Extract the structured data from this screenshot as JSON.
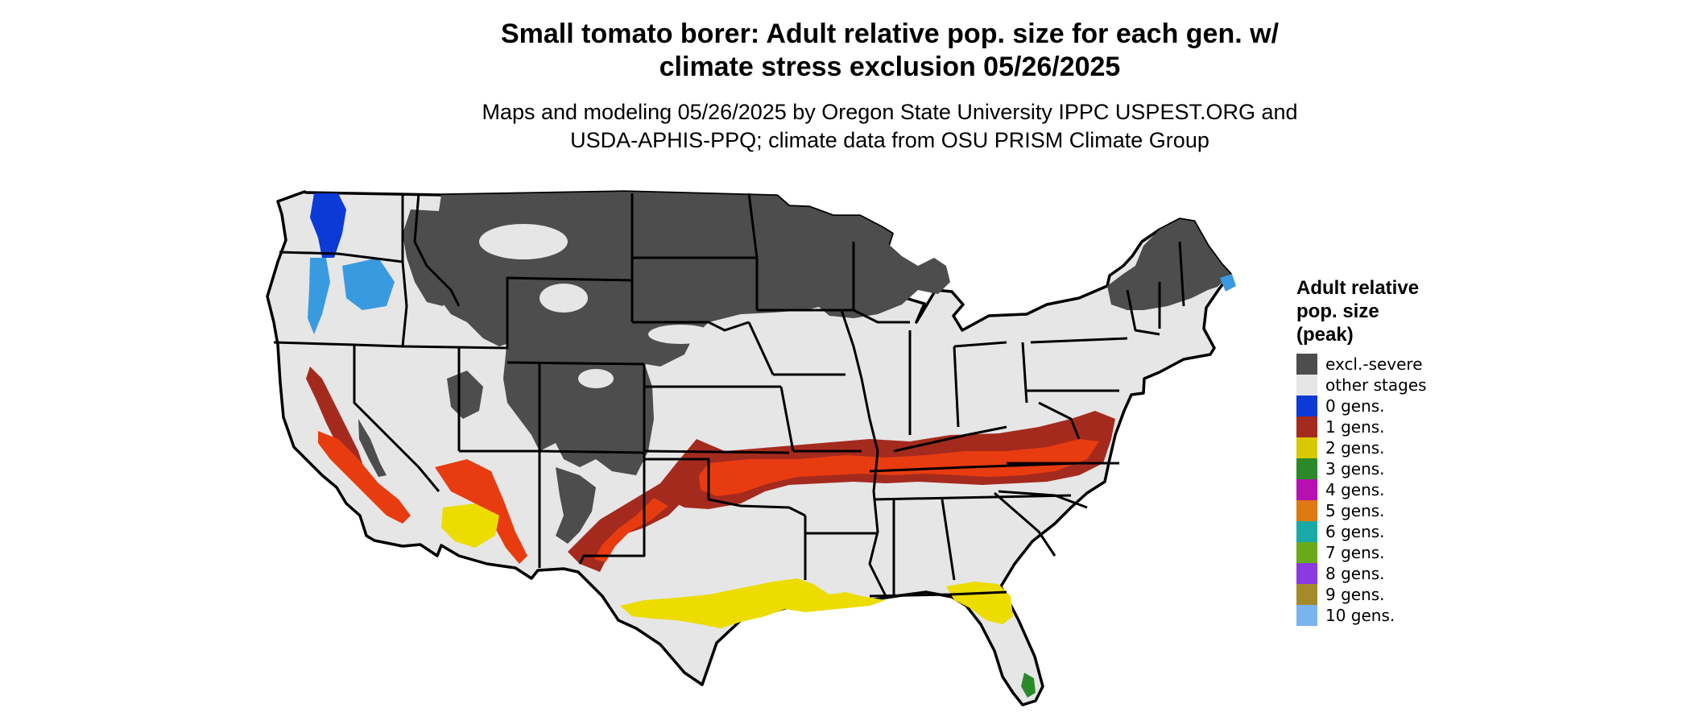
{
  "title": {
    "line1": "Small tomato borer: Adult relative pop. size for each gen. w/",
    "line2": "climate stress exclusion 05/26/2025"
  },
  "subtitle": {
    "line1": "Maps and modeling 05/26/2025 by Oregon State University IPPC USPEST.ORG and",
    "line2": "USDA-APHIS-PPQ; climate data from OSU PRISM Climate Group"
  },
  "legend": {
    "title_line1": "Adult relative",
    "title_line2": "pop. size",
    "title_line3": "(peak)",
    "items": [
      {
        "label": "excl.-severe",
        "color": "#4d4d4d"
      },
      {
        "label": "other stages",
        "color": "#e6e6e6"
      },
      {
        "label": "0 gens.",
        "color": "#0b3ad6"
      },
      {
        "label": "1 gens.",
        "color": "#a52a1e"
      },
      {
        "label": "2 gens.",
        "color": "#d8c800"
      },
      {
        "label": "3 gens.",
        "color": "#2a8a2a"
      },
      {
        "label": "4 gens.",
        "color": "#b80fb0"
      },
      {
        "label": "5 gens.",
        "color": "#dd7a14"
      },
      {
        "label": "6 gens.",
        "color": "#1aaaa5"
      },
      {
        "label": "7 gens.",
        "color": "#6aaa1a"
      },
      {
        "label": "8 gens.",
        "color": "#8a3ae0"
      },
      {
        "label": "9 gens.",
        "color": "#a58a2a"
      },
      {
        "label": "10 gens.",
        "color": "#7ab4f0"
      }
    ]
  },
  "colors": {
    "excluded": "#4d4d4d",
    "other_stages": "#e6e6e6",
    "one_gen_dark": "#a52a1e",
    "one_gen_bright": "#e83c10",
    "two_gens": "#ecdc00",
    "zero_gens": "#0b3ad6",
    "light_blue": "#3a9ae0",
    "three_gens": "#2a8a2a",
    "border": "#000000"
  }
}
